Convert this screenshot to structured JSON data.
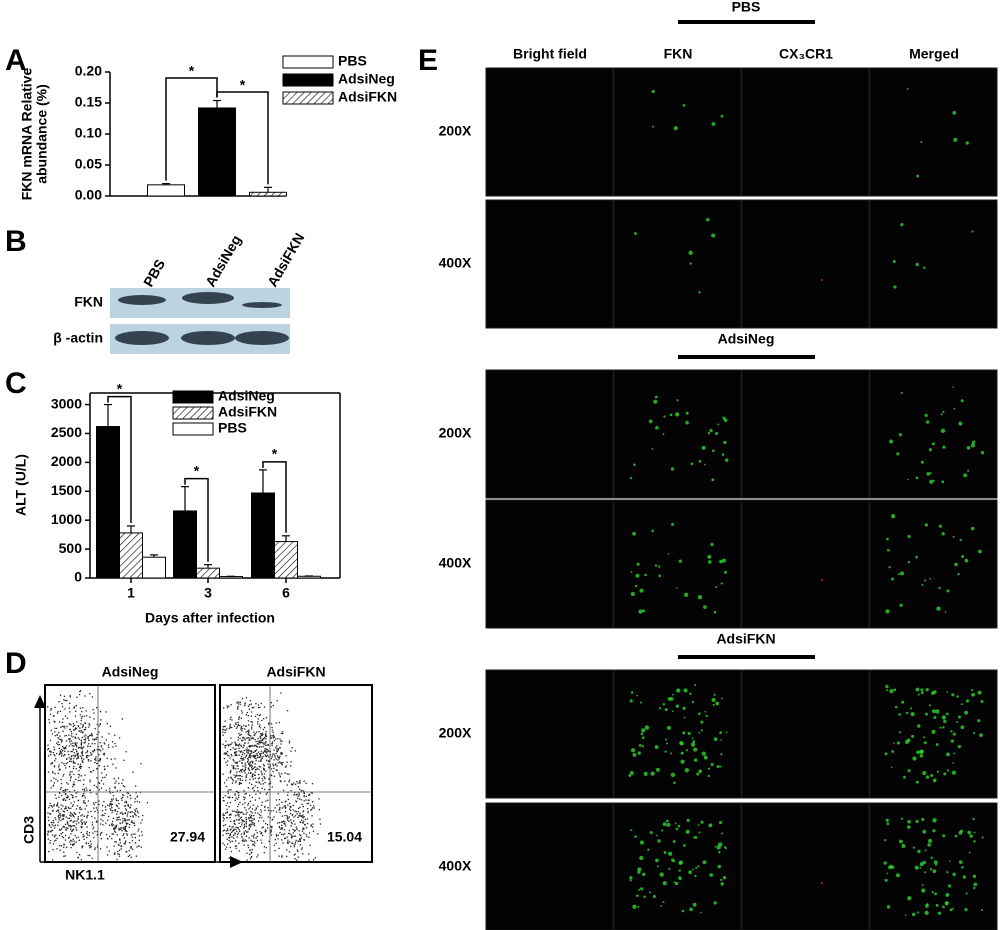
{
  "panel_labels": [
    "A",
    "B",
    "C",
    "D",
    "E"
  ],
  "chart_data": [
    {
      "type": "bar",
      "categories": [
        null
      ],
      "series": [
        {
          "name": "PBS",
          "color": "#ffffff",
          "values": [
            0.018
          ],
          "errors": [
            0.002
          ]
        },
        {
          "name": "AdsiNeg",
          "color": "#000000",
          "values": [
            0.142
          ],
          "errors": [
            0.012
          ]
        },
        {
          "name": "AdsiFKN",
          "color": "#ffffff",
          "hatch": true,
          "values": [
            0.006
          ],
          "errors": [
            0.008
          ]
        }
      ],
      "y_label": [
        "FKN mRNA Relative",
        "abundance (%)"
      ],
      "ylim": [
        0,
        0.2
      ],
      "yticks": [
        {
          "value": 0,
          "label": "0.00"
        },
        0.05,
        {
          "value": 0.1,
          "label": "0.10"
        },
        0.15,
        {
          "value": 0.2,
          "label": "0.20"
        }
      ],
      "annotations": [
        "*",
        "*"
      ],
      "legend": "upper right"
    },
    {
      "type": "bar",
      "categories": [
        "1",
        "3",
        "6"
      ],
      "series": [
        {
          "name": "AdsiNeg",
          "color": "#000000",
          "values": [
            2620,
            1160,
            1470
          ],
          "errors": [
            380,
            420,
            400
          ]
        },
        {
          "name": "AdsiFKN",
          "color": "#ffffff",
          "hatch": true,
          "values": [
            780,
            170,
            630
          ],
          "errors": [
            120,
            60,
            100
          ]
        },
        {
          "name": "PBS",
          "color": "#ffffff",
          "values": [
            360,
            25,
            30
          ],
          "errors": [
            40,
            5,
            5
          ]
        }
      ],
      "x_label": "Days after infection",
      "y_label": "ALT (U/L)",
      "ylim": [
        0,
        3200
      ],
      "yticks": [
        0,
        500,
        1000,
        1500,
        2000,
        2500,
        3000
      ],
      "annotations": [
        "*",
        "*",
        "*"
      ],
      "legend": "upper right"
    }
  ],
  "blot": {
    "lanes": [
      "PBS",
      "AdsiNeg",
      "AdsiFKN"
    ],
    "rows": [
      "FKN",
      "β -actin"
    ]
  },
  "flow": {
    "plots": [
      {
        "title": "AdsiNeg",
        "value": 27.94
      },
      {
        "title": "AdsiFKN",
        "value": 15.04
      }
    ],
    "y_axis": "CD3",
    "x_axis": "NK1.1"
  },
  "micrographs": {
    "columns": [
      "Bright field",
      "FKN",
      "CX₃CR1",
      "Merged"
    ],
    "groups": [
      {
        "title": "PBS",
        "rows": [
          "200X",
          "400X"
        ]
      },
      {
        "title": "AdsiNeg",
        "rows": [
          "200X",
          "400X"
        ]
      },
      {
        "title": "AdsiFKN",
        "rows": [
          "200X",
          "400X"
        ]
      }
    ]
  }
}
